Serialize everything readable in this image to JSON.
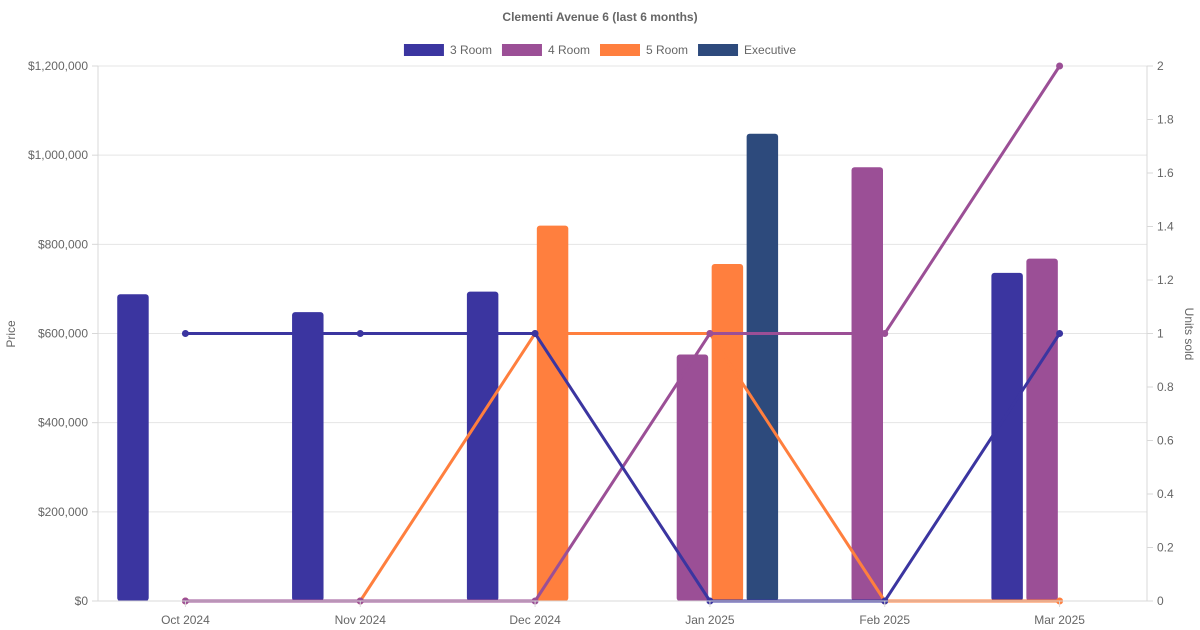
{
  "chart_data": {
    "type": "bar+line",
    "title": "Clementi Avenue 6 (last 6 months)",
    "categories": [
      "Oct 2024",
      "Nov 2024",
      "Dec 2024",
      "Jan 2025",
      "Feb 2025",
      "Mar 2025"
    ],
    "y_left": {
      "label": "Price",
      "min": 0,
      "max": 1200000,
      "ticks": [
        0,
        200000,
        400000,
        600000,
        800000,
        1000000,
        1200000
      ],
      "tick_labels": [
        "$0",
        "$200,000",
        "$400,000",
        "$600,000",
        "$800,000",
        "$1,000,000",
        "$1,200,000"
      ]
    },
    "y_right": {
      "label": "Units sold",
      "min": 0,
      "max": 2,
      "ticks": [
        0,
        0.2,
        0.4,
        0.6,
        0.8,
        1,
        1.2,
        1.4,
        1.6,
        1.8,
        2
      ],
      "tick_labels": [
        "0",
        "0.2",
        "0.4",
        "0.6",
        "0.8",
        "1",
        "1.2",
        "1.4",
        "1.6",
        "1.8",
        "2"
      ]
    },
    "legend": {
      "position": "top-center"
    },
    "series": [
      {
        "name": "3 Room",
        "color": "#3b35a0",
        "prices": [
          688000,
          648000,
          694000,
          null,
          null,
          736000
        ],
        "units": [
          1,
          1,
          1,
          0,
          0,
          1
        ]
      },
      {
        "name": "4 Room",
        "color": "#9b4f96",
        "prices": [
          null,
          null,
          null,
          553000,
          973000,
          768000
        ],
        "units": [
          0,
          0,
          0,
          1,
          1,
          2
        ]
      },
      {
        "name": "5 Room",
        "color": "#ff7f3e",
        "prices": [
          null,
          null,
          842000,
          756000,
          null,
          null
        ],
        "units": [
          0,
          0,
          1,
          1,
          0,
          0
        ]
      },
      {
        "name": "Executive",
        "color": "#2d4a7c",
        "prices": [
          null,
          null,
          null,
          1048000,
          null,
          null
        ],
        "units": null
      }
    ]
  }
}
